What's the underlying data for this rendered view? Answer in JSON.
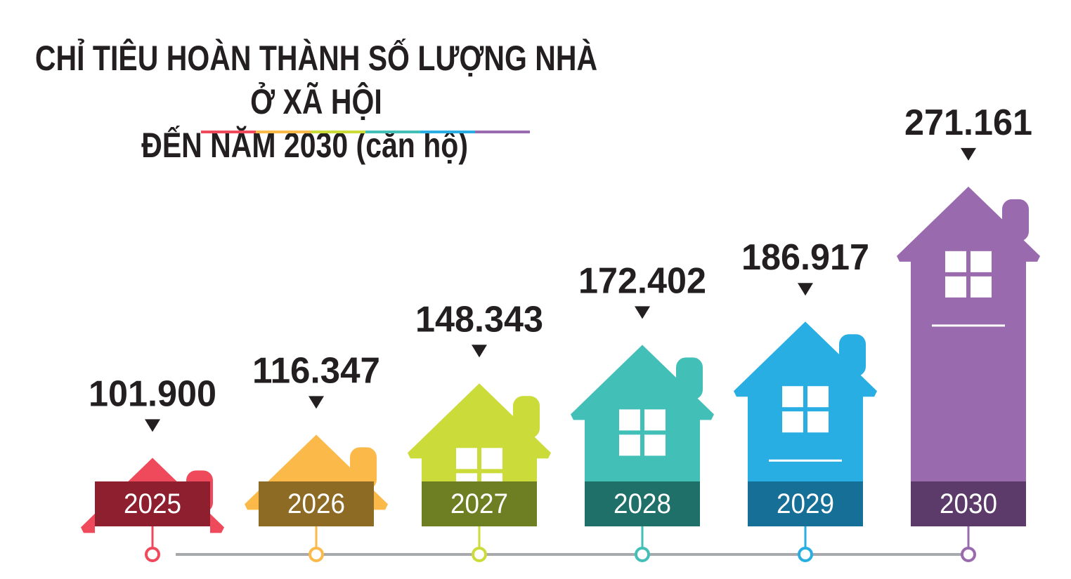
{
  "title_line1": "CHỈ TIÊU HOÀN THÀNH SỐ LƯỢNG NHÀ Ở XÃ HỘI",
  "title_line2": "ĐẾN NĂM 2030 (căn hộ)",
  "chart_data": {
    "type": "bar",
    "title": "CHỈ TIÊU HOÀN THÀNH SỐ LƯỢNG NHÀ Ở XÃ HỘI ĐẾN NĂM 2030 (căn hộ)",
    "categories": [
      "2025",
      "2026",
      "2027",
      "2028",
      "2029",
      "2030"
    ],
    "values": [
      101900,
      116347,
      148343,
      172402,
      186917,
      271161
    ],
    "value_labels": [
      "101.900",
      "116.347",
      "148.343",
      "172.402",
      "186.917",
      "271.161"
    ],
    "colors": [
      "#ef4a5b",
      "#fbb94a",
      "#cbdb3a",
      "#42bfb6",
      "#28aee3",
      "#9a6aaf"
    ],
    "dark_colors": [
      "#8e1f2f",
      "#8e6b24",
      "#6d7f22",
      "#1e7068",
      "#156f96",
      "#5c3b6b"
    ],
    "accent_line_colors": [
      "#ef4a5b",
      "#fbb94a",
      "#cbdb3a",
      "#42bfb6",
      "#28aee3",
      "#9a6aaf"
    ],
    "timeline_color": "#a7a9ac",
    "label_color": "#231f20"
  }
}
